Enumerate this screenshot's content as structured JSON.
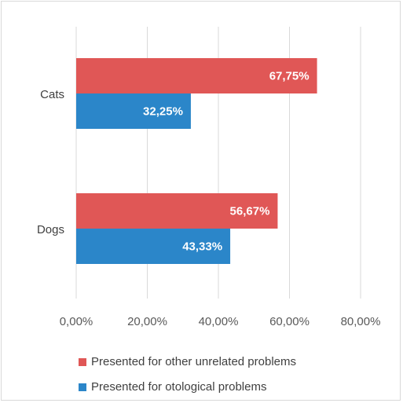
{
  "chart_data": {
    "type": "bar",
    "orientation": "horizontal",
    "categories": [
      "Cats",
      "Dogs"
    ],
    "series": [
      {
        "name": "Presented for other unrelated problems",
        "values": [
          67.75,
          56.67
        ],
        "labels": [
          "67,75%",
          "56,67%"
        ],
        "color": "#e05756"
      },
      {
        "name": "Presented for otological problems",
        "values": [
          32.25,
          43.33
        ],
        "labels": [
          "32,25%",
          "43,33%"
        ],
        "color": "#2b86c9"
      }
    ],
    "xlim": [
      0,
      100
    ],
    "xticks": [
      0,
      20,
      40,
      60,
      80
    ],
    "xtick_labels": [
      "0,00%",
      "20,00%",
      "40,00%",
      "60,00%",
      "80,00%"
    ],
    "grid": "vertical",
    "legend_position": "bottom",
    "gridline_color": "#d9d9d9"
  }
}
